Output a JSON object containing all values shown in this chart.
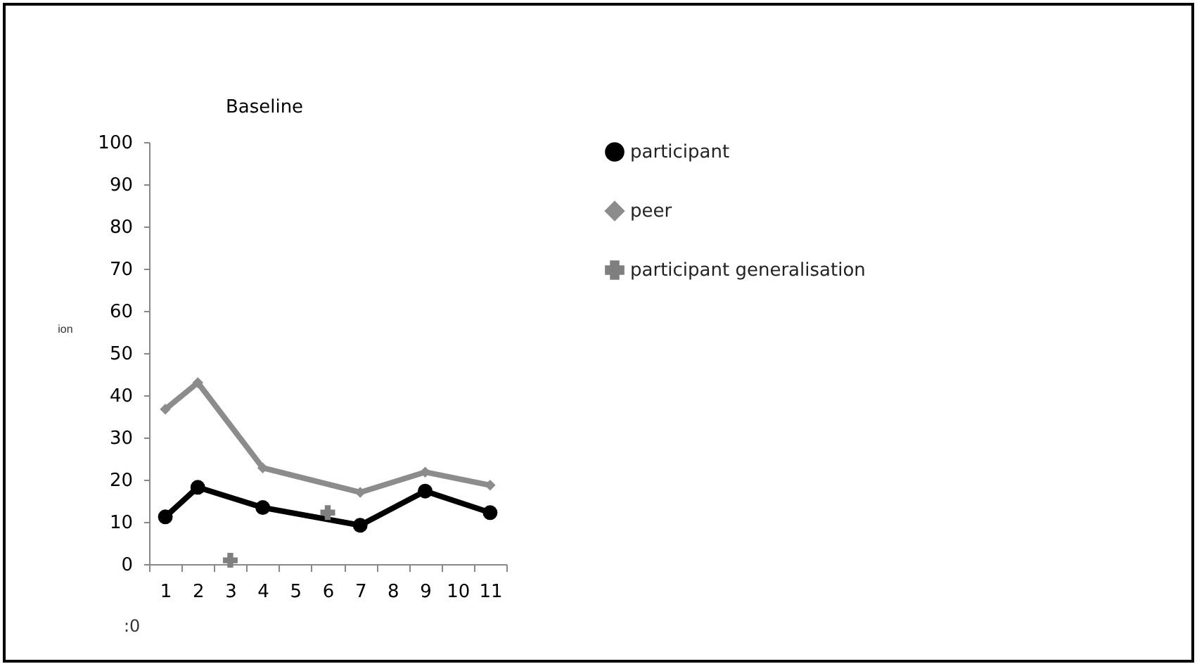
{
  "chart_data": {
    "type": "line",
    "title": "Baseline",
    "ylabel": "ion",
    "annotations": [
      ":0"
    ],
    "categories": [
      "1",
      "2",
      "3",
      "4",
      "5",
      "6",
      "7",
      "8",
      "9",
      "10",
      "11"
    ],
    "ylim": [
      0,
      100
    ],
    "yticks": [
      0,
      10,
      20,
      30,
      40,
      50,
      60,
      70,
      80,
      90,
      100
    ],
    "grid": false,
    "legend": "right",
    "series": [
      {
        "name": "participant",
        "color": "#000000",
        "marker": "circle",
        "values": [
          11.2,
          18.2,
          null,
          13.4,
          null,
          null,
          9.2,
          null,
          17.3,
          null,
          12.2
        ]
      },
      {
        "name": "peer",
        "color": "#8c8c8c",
        "marker": "diamond",
        "values": [
          36.7,
          43,
          null,
          22.8,
          null,
          null,
          17,
          null,
          21.8,
          null,
          18.7
        ]
      },
      {
        "name": "participant generalisation",
        "type": "scatter",
        "color": "#7f7f7f",
        "marker": "cross",
        "values": [
          null,
          null,
          0.9,
          null,
          null,
          12.2,
          null,
          null,
          null,
          null,
          null
        ]
      }
    ]
  }
}
